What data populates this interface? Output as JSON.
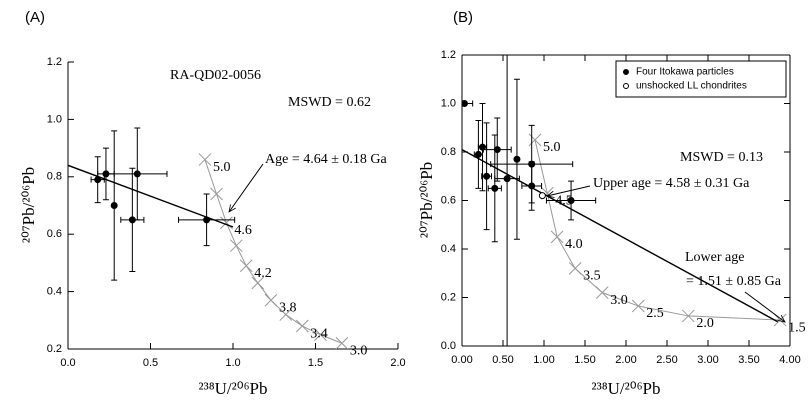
{
  "chart_data": [
    {
      "type": "scatter",
      "panel_label": "(A)",
      "x_label": "²³⁸U/²⁰⁶Pb",
      "y_label": "²⁰⁷Pb/²⁰⁶Pb",
      "xlim": [
        0,
        2.0
      ],
      "ylim": [
        0.2,
        1.2
      ],
      "xticks": [
        {
          "value": 0,
          "label": "0.0"
        },
        0.5,
        {
          "value": 1,
          "label": "1.0"
        },
        1.5,
        {
          "value": 2,
          "label": "2.0"
        }
      ],
      "yticks": [
        0.2,
        0.4,
        0.6,
        0.8,
        {
          "value": 1,
          "label": "1.0"
        },
        1.2
      ],
      "box": false,
      "series": [
        {
          "marker": "filled",
          "color": "#000000",
          "x": [
            0.18,
            0.23,
            0.28,
            0.39,
            0.42,
            0.84
          ],
          "y": [
            0.79,
            0.81,
            0.7,
            0.65,
            0.81,
            0.65
          ],
          "xerr": [
            0.04,
            0.05,
            null,
            0.07,
            0.18,
            0.17
          ],
          "yerr": [
            0.08,
            0.09,
            0.26,
            0.18,
            0.16,
            0.09
          ]
        }
      ],
      "regression": {
        "x": [
          0,
          1.0
        ],
        "y": [
          0.84,
          0.625
        ]
      },
      "concordia": {
        "x": [
          0.83,
          0.9,
          0.96,
          1.02,
          1.08,
          1.15,
          1.23,
          1.32,
          1.42,
          1.53,
          1.66
        ],
        "y": [
          0.86,
          0.74,
          0.64,
          0.56,
          0.49,
          0.43,
          0.37,
          0.32,
          0.28,
          0.25,
          0.22
        ],
        "labels": [
          "5.0",
          null,
          "4.6",
          null,
          "4.2",
          null,
          "3.8",
          null,
          "3.4",
          null,
          "3.0"
        ]
      },
      "annotations": [
        "RA-QD02-0056",
        "MSWD = 0.62",
        "Age = 4.64 ± 0.18 Ga"
      ]
    },
    {
      "type": "scatter",
      "panel_label": "(B)",
      "x_label": "²³⁸U/²⁰⁶Pb",
      "y_label": "²⁰⁷Pb/²⁰⁶Pb",
      "xlim": [
        0,
        4.0
      ],
      "ylim": [
        0,
        1.2
      ],
      "xticks": [
        {
          "value": 0,
          "label": "0.00"
        },
        {
          "value": 0.5,
          "label": "0.50"
        },
        {
          "value": 1,
          "label": "1.00"
        },
        {
          "value": 1.5,
          "label": "1.50"
        },
        {
          "value": 2,
          "label": "2.00"
        },
        {
          "value": 2.5,
          "label": "2.50"
        },
        {
          "value": 3,
          "label": "3.00"
        },
        {
          "value": 3.5,
          "label": "3.50"
        },
        {
          "value": 4,
          "label": "4.00"
        }
      ],
      "yticks": [
        {
          "value": 0,
          "label": "0.0"
        },
        0.2,
        0.4,
        0.6,
        0.8,
        {
          "value": 1,
          "label": "1.0"
        },
        1.2
      ],
      "box": true,
      "legend": "top-right",
      "series": [
        {
          "name": "Four Itokawa particles",
          "marker": "filled",
          "color": "#000000",
          "x": [
            0.03,
            0.2,
            0.25,
            0.3,
            0.4,
            0.43,
            0.55,
            0.67,
            0.85,
            0.85,
            1.33
          ],
          "y": [
            1.0,
            0.79,
            0.82,
            0.7,
            0.65,
            0.81,
            0.69,
            0.77,
            0.75,
            0.66,
            0.6
          ],
          "xerr": [
            0.1,
            0.05,
            0.05,
            0.06,
            0.08,
            0.17,
            0.15,
            null,
            0.5,
            0.12,
            0.3
          ],
          "yerr": [
            null,
            0.14,
            0.18,
            0.22,
            0.22,
            0.13,
            0.69,
            0.33,
            0.16,
            0.1,
            0.08
          ]
        },
        {
          "name": "unshocked LL chondrites",
          "marker": "open",
          "color": "#000000",
          "x": [
            0.98
          ],
          "y": [
            0.62
          ],
          "xerr": [
            null
          ],
          "yerr": [
            null
          ]
        }
      ],
      "regression": {
        "x": [
          0,
          3.85
        ],
        "y": [
          0.81,
          0.1
        ]
      },
      "concordia": {
        "x": [
          0.89,
          1.04,
          1.16,
          1.38,
          1.71,
          2.15,
          2.76,
          3.88
        ],
        "y": [
          0.85,
          0.63,
          0.45,
          0.32,
          0.22,
          0.165,
          0.124,
          0.107
        ],
        "labels": [
          "5.0",
          "4.5",
          "4.0",
          "3.5",
          "3.0",
          "2.5",
          "2.0",
          "1.5"
        ]
      },
      "annotations": [
        "MSWD = 0.13",
        "Upper age = 4.58 ± 0.31 Ga",
        "Lower age",
        "= 1.51 ± 0.85 Ga"
      ]
    }
  ]
}
